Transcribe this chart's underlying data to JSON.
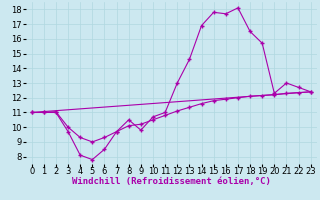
{
  "title": "",
  "xlabel": "Windchill (Refroidissement éolien,°C)",
  "ylabel": "",
  "bg_color": "#cce8f0",
  "line_color": "#aa00aa",
  "xlim": [
    -0.5,
    23.5
  ],
  "ylim": [
    7.5,
    18.5
  ],
  "yticks": [
    8,
    9,
    10,
    11,
    12,
    13,
    14,
    15,
    16,
    17,
    18
  ],
  "xticks": [
    0,
    1,
    2,
    3,
    4,
    5,
    6,
    7,
    8,
    9,
    10,
    11,
    12,
    13,
    14,
    15,
    16,
    17,
    18,
    19,
    20,
    21,
    22,
    23
  ],
  "line1_x": [
    0,
    1,
    2,
    3,
    4,
    5,
    6,
    7,
    8,
    9,
    10,
    11,
    12,
    13,
    14,
    15,
    16,
    17,
    18,
    19,
    20,
    21,
    22,
    23
  ],
  "line1_y": [
    11.0,
    11.0,
    11.0,
    9.7,
    8.1,
    7.8,
    8.5,
    9.7,
    10.5,
    9.8,
    10.7,
    11.0,
    13.0,
    14.6,
    16.9,
    17.8,
    17.7,
    18.1,
    16.5,
    15.7,
    12.3,
    13.0,
    12.7,
    12.4
  ],
  "line2_x": [
    0,
    23
  ],
  "line2_y": [
    11.0,
    12.4
  ],
  "line3_x": [
    0,
    1,
    2,
    3,
    4,
    5,
    6,
    7,
    8,
    9,
    10,
    11,
    12,
    13,
    14,
    15,
    16,
    17,
    18,
    19,
    20,
    21,
    22,
    23
  ],
  "line3_y": [
    11.0,
    11.0,
    11.05,
    10.0,
    9.3,
    9.0,
    9.3,
    9.7,
    10.1,
    10.2,
    10.5,
    10.8,
    11.1,
    11.35,
    11.6,
    11.8,
    11.9,
    12.0,
    12.1,
    12.15,
    12.2,
    12.3,
    12.35,
    12.4
  ],
  "marker": "+",
  "markersize": 3,
  "linewidth": 0.8,
  "xlabel_fontsize": 6.5,
  "tick_fontsize": 6,
  "grid_color": "#b0d8e0"
}
